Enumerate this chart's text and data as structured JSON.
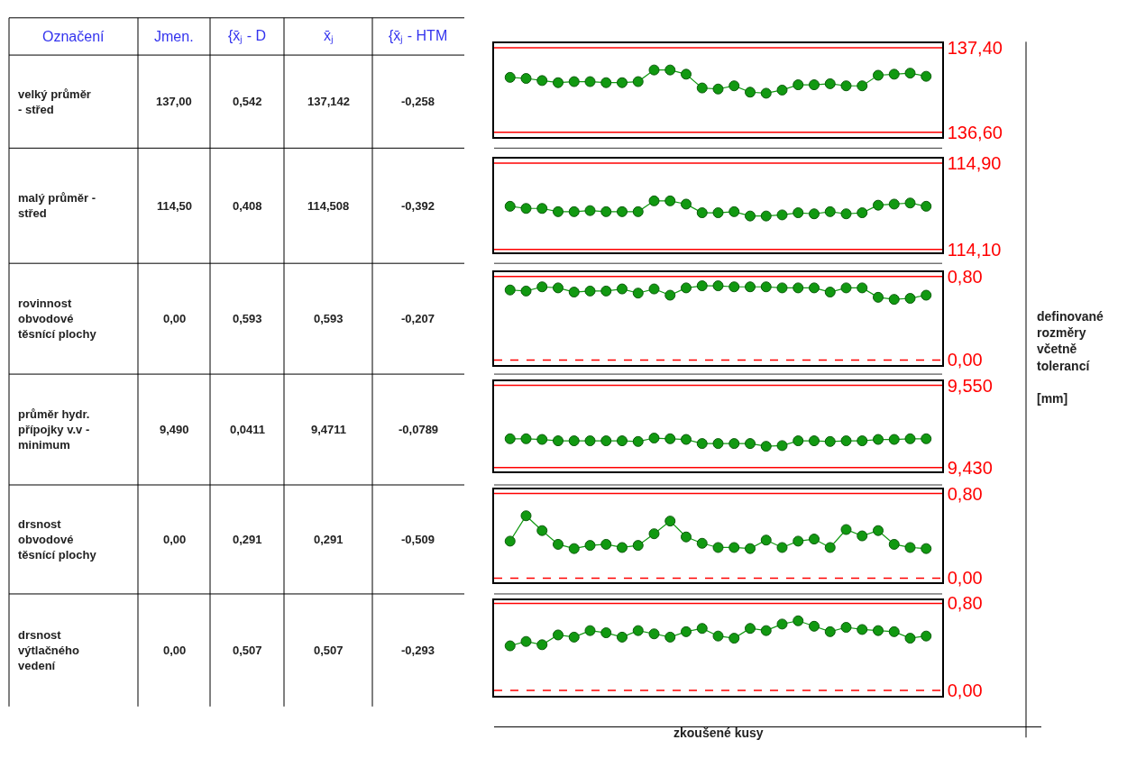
{
  "chart_data": [
    {
      "type": "other",
      "annotations": [
        "Označení",
        "Jmen.",
        "{x̄ⱼ - D",
        "x̄ⱼ",
        "{x̄ⱼ - HTM",
        "velký průměr\n- střed",
        "137,00",
        "0,542",
        "137,142",
        "-0,258",
        "malý průměr -\nstřed",
        "114,50",
        "0,408",
        "114,508",
        "-0,392",
        "rovinnost\nobvodové\ntěsnící plochy",
        "0,00",
        "0,593",
        "0,593",
        "-0,207",
        "průměr hydr.\npřípojky v.v -\nminimum",
        "9,490",
        "0,0411",
        "9,4711",
        "-0,0789",
        "drsnost\nobvodové\ntěsnící plochy",
        "0,00",
        "0,291",
        "0,291",
        "-0,509",
        "drsnost\nvýtlačného\nvedení",
        "0,00",
        "0,507",
        "0,507",
        "-0,293"
      ]
    },
    {
      "type": "line",
      "categories": [
        null,
        null,
        null,
        null,
        null,
        null,
        null,
        null,
        null,
        null,
        null,
        null,
        null,
        null,
        null,
        null,
        null,
        null,
        null,
        null,
        null,
        null,
        null,
        null,
        null,
        null,
        null
      ],
      "tick_labels": "y",
      "marker": "circle",
      "line_style": "solid",
      "ylim": [
        136.56,
        137.44
      ],
      "yticks": [
        {
          "value": 136.6,
          "label": "136,60"
        },
        {
          "value": 137.4,
          "label": "137,40"
        }
      ],
      "ref_lines": [
        {
          "axis": "y",
          "value": 137.4,
          "color": "#ff0000",
          "line_style": "solid"
        },
        {
          "axis": "y",
          "value": 136.6,
          "color": "#ff0000",
          "line_style": "solid"
        }
      ],
      "series": [
        {
          "color": "#119911",
          "values": [
            137.12,
            137.11,
            137.09,
            137.07,
            137.08,
            137.08,
            137.07,
            137.07,
            137.08,
            137.19,
            137.19,
            137.15,
            137.02,
            137.01,
            137.04,
            136.98,
            136.97,
            137.0,
            137.05,
            137.05,
            137.06,
            137.04,
            137.04,
            137.14,
            137.15,
            137.16,
            137.13
          ]
        }
      ]
    },
    {
      "type": "line",
      "categories": [
        null,
        null,
        null,
        null,
        null,
        null,
        null,
        null,
        null,
        null,
        null,
        null,
        null,
        null,
        null,
        null,
        null,
        null,
        null,
        null,
        null,
        null,
        null,
        null,
        null,
        null,
        null
      ],
      "tick_labels": "y",
      "marker": "circle",
      "line_style": "solid",
      "ylim": [
        114.07,
        114.94
      ],
      "yticks": [
        {
          "value": 114.1,
          "label": "114,10"
        },
        {
          "value": 114.9,
          "label": "114,90"
        }
      ],
      "ref_lines": [
        {
          "axis": "y",
          "value": 114.9,
          "color": "#ff0000",
          "line_style": "solid"
        },
        {
          "axis": "y",
          "value": 114.1,
          "color": "#ff0000",
          "line_style": "solid"
        }
      ],
      "series": [
        {
          "color": "#119911",
          "values": [
            114.5,
            114.48,
            114.48,
            114.45,
            114.45,
            114.46,
            114.45,
            114.45,
            114.45,
            114.55,
            114.55,
            114.52,
            114.44,
            114.44,
            114.45,
            114.41,
            114.41,
            114.42,
            114.44,
            114.43,
            114.45,
            114.43,
            114.44,
            114.51,
            114.52,
            114.53,
            114.5
          ]
        }
      ]
    },
    {
      "type": "line",
      "categories": [
        null,
        null,
        null,
        null,
        null,
        null,
        null,
        null,
        null,
        null,
        null,
        null,
        null,
        null,
        null,
        null,
        null,
        null,
        null,
        null,
        null,
        null,
        null,
        null,
        null,
        null,
        null
      ],
      "tick_labels": "y",
      "marker": "circle",
      "line_style": "solid",
      "ylim": [
        -0.05,
        0.84
      ],
      "yticks": [
        {
          "value": 0.0,
          "label": "0,00"
        },
        {
          "value": 0.8,
          "label": "0,80"
        }
      ],
      "ref_lines": [
        {
          "axis": "y",
          "value": 0.8,
          "color": "#ff0000",
          "line_style": "solid"
        },
        {
          "axis": "y",
          "value": 0.0,
          "color": "#ff0000",
          "line_style": "dashed"
        }
      ],
      "series": [
        {
          "color": "#119911",
          "values": [
            0.67,
            0.66,
            0.7,
            0.69,
            0.65,
            0.66,
            0.66,
            0.68,
            0.64,
            0.68,
            0.62,
            0.69,
            0.71,
            0.71,
            0.7,
            0.7,
            0.7,
            0.69,
            0.69,
            0.69,
            0.65,
            0.69,
            0.69,
            0.6,
            0.58,
            0.59,
            0.62
          ]
        }
      ]
    },
    {
      "type": "line",
      "categories": [
        null,
        null,
        null,
        null,
        null,
        null,
        null,
        null,
        null,
        null,
        null,
        null,
        null,
        null,
        null,
        null,
        null,
        null,
        null,
        null,
        null,
        null,
        null,
        null,
        null,
        null,
        null
      ],
      "tick_labels": "y",
      "marker": "circle",
      "line_style": "solid",
      "ylim": [
        9.424,
        9.556
      ],
      "yticks": [
        {
          "value": 9.43,
          "label": "9,430"
        },
        {
          "value": 9.55,
          "label": "9,550"
        }
      ],
      "ref_lines": [
        {
          "axis": "y",
          "value": 9.55,
          "color": "#ff0000",
          "line_style": "solid"
        },
        {
          "axis": "y",
          "value": 9.43,
          "color": "#ff0000",
          "line_style": "solid"
        }
      ],
      "series": [
        {
          "color": "#119911",
          "values": [
            9.472,
            9.472,
            9.471,
            9.469,
            9.469,
            9.469,
            9.469,
            9.469,
            9.468,
            9.473,
            9.472,
            9.471,
            9.465,
            9.465,
            9.465,
            9.465,
            9.461,
            9.462,
            9.469,
            9.469,
            9.468,
            9.469,
            9.469,
            9.471,
            9.471,
            9.472,
            9.472
          ]
        }
      ]
    },
    {
      "type": "line",
      "categories": [
        null,
        null,
        null,
        null,
        null,
        null,
        null,
        null,
        null,
        null,
        null,
        null,
        null,
        null,
        null,
        null,
        null,
        null,
        null,
        null,
        null,
        null,
        null,
        null,
        null,
        null,
        null
      ],
      "tick_labels": "y",
      "marker": "circle",
      "line_style": "solid",
      "ylim": [
        -0.04,
        0.84
      ],
      "yticks": [
        {
          "value": 0.0,
          "label": "0,00"
        },
        {
          "value": 0.8,
          "label": "0,80"
        }
      ],
      "ref_lines": [
        {
          "axis": "y",
          "value": 0.8,
          "color": "#ff0000",
          "line_style": "solid"
        },
        {
          "axis": "y",
          "value": 0.0,
          "color": "#ff0000",
          "line_style": "dashed"
        }
      ],
      "series": [
        {
          "color": "#119911",
          "values": [
            0.35,
            0.59,
            0.45,
            0.32,
            0.28,
            0.31,
            0.32,
            0.29,
            0.31,
            0.42,
            0.54,
            0.39,
            0.33,
            0.29,
            0.29,
            0.28,
            0.36,
            0.29,
            0.35,
            0.37,
            0.29,
            0.46,
            0.4,
            0.45,
            0.32,
            0.29,
            0.28
          ]
        }
      ]
    },
    {
      "type": "line",
      "categories": [
        null,
        null,
        null,
        null,
        null,
        null,
        null,
        null,
        null,
        null,
        null,
        null,
        null,
        null,
        null,
        null,
        null,
        null,
        null,
        null,
        null,
        null,
        null,
        null,
        null,
        null,
        null
      ],
      "tick_labels": "y",
      "marker": "circle",
      "line_style": "solid",
      "ylim": [
        -0.05,
        0.83
      ],
      "yticks": [
        {
          "value": 0.0,
          "label": "0,00"
        },
        {
          "value": 0.8,
          "label": "0,80"
        }
      ],
      "ref_lines": [
        {
          "axis": "y",
          "value": 0.8,
          "color": "#ff0000",
          "line_style": "solid"
        },
        {
          "axis": "y",
          "value": 0.0,
          "color": "#ff0000",
          "line_style": "dashed"
        }
      ],
      "xlabel": "zkoušené kusy",
      "ylabel": "definované\nrozměry\nvčetně\ntolerancí\n\n[mm]",
      "series": [
        {
          "color": "#119911",
          "values": [
            0.41,
            0.45,
            0.42,
            0.51,
            0.49,
            0.55,
            0.53,
            0.49,
            0.55,
            0.52,
            0.49,
            0.54,
            0.57,
            0.5,
            0.48,
            0.57,
            0.55,
            0.61,
            0.64,
            0.59,
            0.54,
            0.58,
            0.56,
            0.55,
            0.54,
            0.48,
            0.5
          ]
        }
      ]
    }
  ]
}
